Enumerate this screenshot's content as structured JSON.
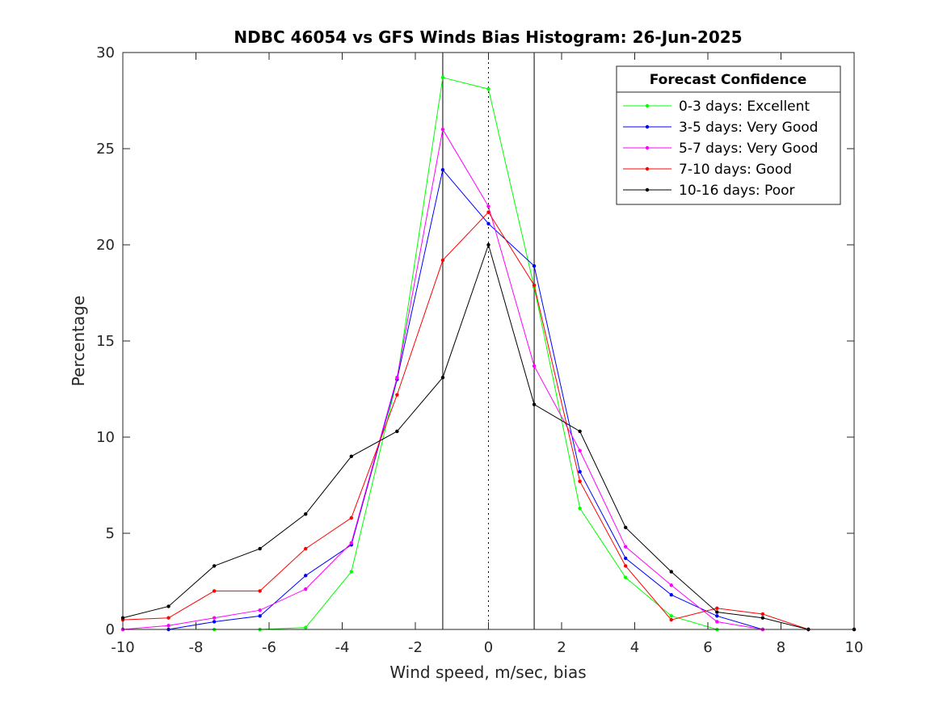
{
  "chart_data": {
    "type": "line",
    "title": "NDBC 46054 vs GFS Winds Bias Histogram: 26-Jun-2025",
    "xlabel": "Wind speed, m/sec, bias",
    "ylabel": "Percentage",
    "xlim": [
      -10,
      10
    ],
    "ylim": [
      0,
      30
    ],
    "xticks": [
      -10,
      -8,
      -6,
      -4,
      -2,
      0,
      2,
      4,
      6,
      8,
      10
    ],
    "yticks": [
      0,
      5,
      10,
      15,
      20,
      25,
      30
    ],
    "grid": false,
    "legend": {
      "title": "Forecast Confidence",
      "placement": "top-right"
    },
    "reference_lines": [
      {
        "x": -1.25,
        "style": "solid"
      },
      {
        "x": 0,
        "style": "dotted"
      },
      {
        "x": 1.25,
        "style": "solid"
      }
    ],
    "x": [
      -10,
      -8.75,
      -7.5,
      -6.25,
      -5,
      -3.75,
      -2.5,
      -1.25,
      0,
      1.25,
      2.5,
      3.75,
      5,
      6.25,
      7.5,
      8.75,
      10
    ],
    "series": [
      {
        "name": "0-3 days: Excellent",
        "color": "#00ff00",
        "values": [
          0,
          0,
          0,
          0,
          0.1,
          3.0,
          13.0,
          28.7,
          28.1,
          17.8,
          6.3,
          2.7,
          0.7,
          0,
          0,
          0,
          0
        ]
      },
      {
        "name": "3-5 days: Very Good",
        "color": "#0000ff",
        "values": [
          0,
          0,
          0.4,
          0.7,
          2.8,
          4.4,
          13.0,
          23.9,
          21.1,
          18.9,
          8.2,
          3.7,
          1.8,
          0.7,
          0,
          0,
          0
        ]
      },
      {
        "name": "5-7 days: Very Good",
        "color": "#ff00ff",
        "values": [
          0,
          0.2,
          0.6,
          1.0,
          2.1,
          4.5,
          13.1,
          26.0,
          22.0,
          13.7,
          9.3,
          4.3,
          2.3,
          0.4,
          0,
          0,
          0
        ]
      },
      {
        "name": "7-10 days: Good",
        "color": "#ff0000",
        "values": [
          0.5,
          0.6,
          2.0,
          2.0,
          4.2,
          5.8,
          12.2,
          19.2,
          21.7,
          17.9,
          7.7,
          3.3,
          0.5,
          1.1,
          0.8,
          0,
          0
        ]
      },
      {
        "name": "10-16 days: Poor",
        "color": "#000000",
        "values": [
          0.6,
          1.2,
          3.3,
          4.2,
          6.0,
          9.0,
          10.3,
          13.1,
          20.0,
          11.7,
          10.3,
          5.3,
          3.0,
          0.9,
          0.6,
          0,
          0
        ]
      }
    ]
  }
}
